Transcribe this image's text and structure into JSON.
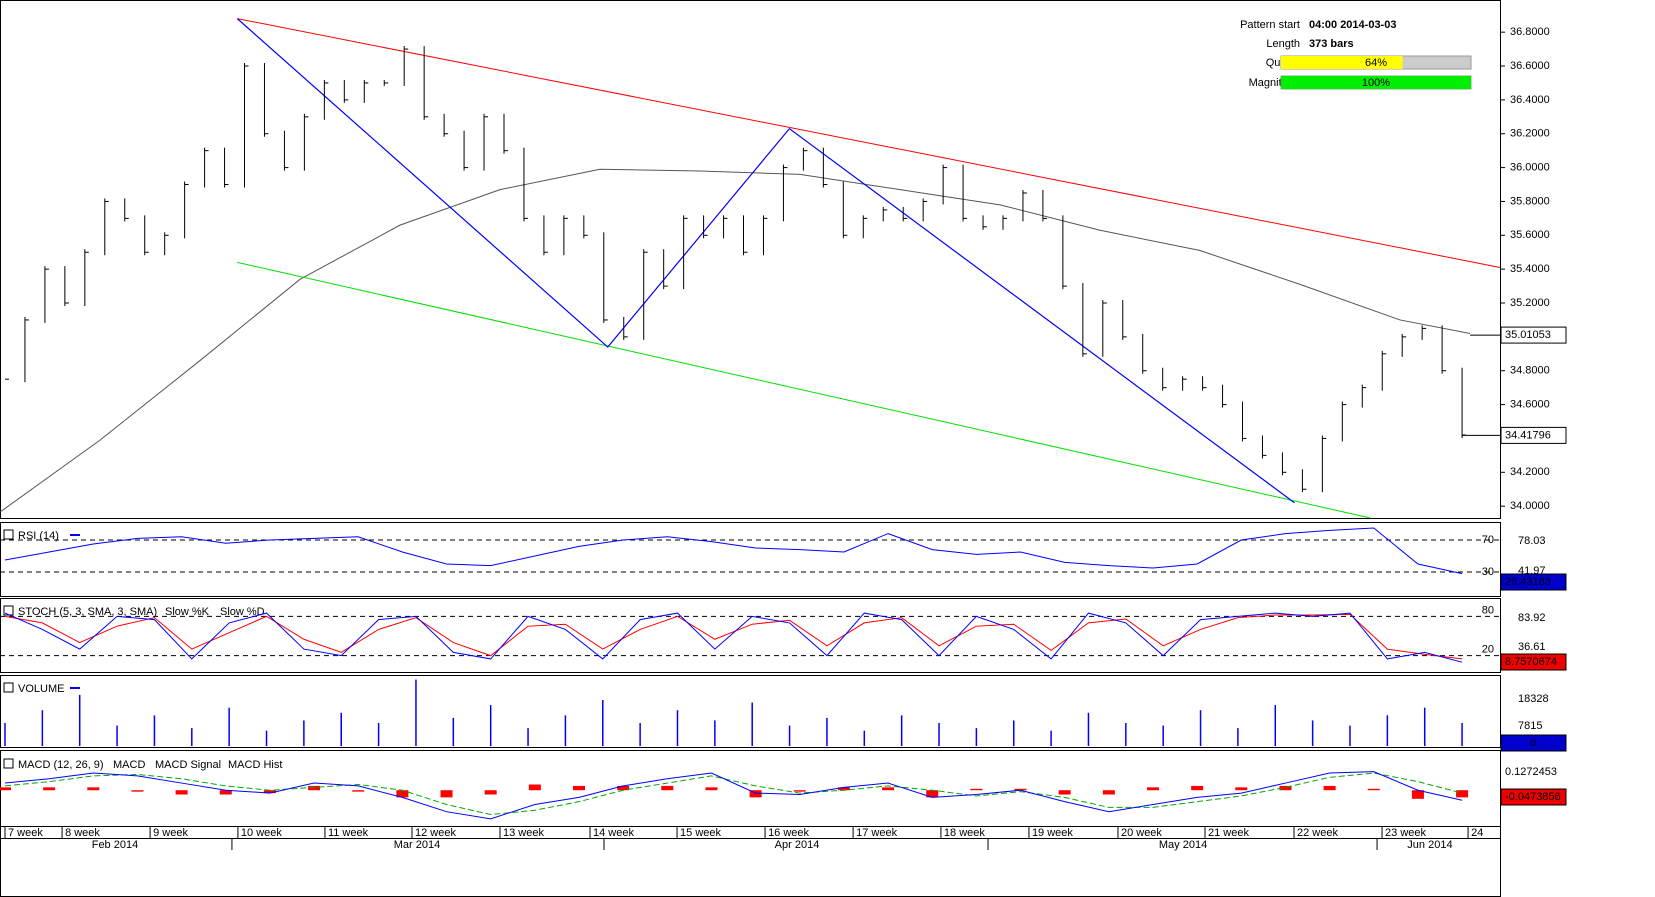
{
  "chart_data": {
    "type": "ohlc",
    "info": {
      "pattern_start_label": "Pattern start",
      "pattern_start": "04:00 2014-03-03",
      "length_label": "Length",
      "length": "373 bars",
      "quality_label": "Quality",
      "quality": {
        "value": 64,
        "label": "64%"
      },
      "magnitude_label": "Magnitude",
      "magnitude": {
        "value": 100,
        "label": "100%"
      }
    },
    "xlim": [
      -0.25,
      74.9
    ],
    "ylim": [
      33.93,
      36.99
    ],
    "yticks": [
      {
        "value": 36.8,
        "label": "36.8000"
      },
      {
        "value": 36.6,
        "label": "36.6000"
      },
      {
        "value": 36.4,
        "label": "36.4000"
      },
      {
        "value": 36.2,
        "label": "36.2000"
      },
      {
        "value": 36.0,
        "label": "36.0000"
      },
      {
        "value": 35.8,
        "label": "35.8000"
      },
      {
        "value": 35.6,
        "label": "35.6000"
      },
      {
        "value": 35.4,
        "label": "35.4000"
      },
      {
        "value": 35.2,
        "label": "35.2000"
      },
      {
        "value": 34.8,
        "label": "34.8000"
      },
      {
        "value": 34.6,
        "label": "34.6000"
      },
      {
        "value": 34.2,
        "label": "34.2000"
      },
      {
        "value": 34.0,
        "label": "34.0000"
      }
    ],
    "values": [
      34.75,
      35.1,
      35.4,
      35.2,
      35.5,
      35.8,
      35.7,
      35.5,
      35.6,
      35.9,
      36.1,
      35.9,
      36.6,
      36.2,
      36.0,
      36.3,
      36.5,
      36.4,
      36.5,
      36.5,
      36.7,
      36.3,
      36.2,
      36.0,
      36.3,
      36.1,
      35.7,
      35.5,
      35.7,
      35.6,
      35.1,
      35.0,
      35.5,
      35.3,
      35.7,
      35.6,
      35.7,
      35.5,
      35.7,
      36.0,
      36.1,
      35.9,
      35.6,
      35.7,
      35.75,
      35.7,
      35.8,
      36.0,
      35.7,
      35.65,
      35.7,
      35.85,
      35.7,
      35.3,
      34.9,
      35.2,
      35.0,
      34.8,
      34.7,
      34.75,
      34.7,
      34.6,
      34.4,
      34.3,
      34.2,
      34.1,
      34.4,
      34.6,
      34.7,
      34.9,
      35.0,
      35.05,
      34.8,
      34.42
    ],
    "last_price": {
      "value": 34.41796,
      "label": "34.41796"
    },
    "ma": {
      "x": [
        -0.25,
        4.76,
        9.77,
        14.78,
        19.79,
        24.8,
        29.81,
        34.82,
        39.83,
        44.84,
        49.85,
        54.86,
        59.87,
        64.88,
        69.89,
        73.4
      ],
      "values": [
        33.965,
        34.39,
        34.86,
        35.34,
        35.66,
        35.87,
        35.99,
        35.98,
        35.96,
        35.87,
        35.78,
        35.63,
        35.51,
        35.31,
        35.1,
        35.02
      ],
      "last": {
        "value": 35.01053,
        "label": "35.01053"
      },
      "color": "#555555"
    },
    "resistance": {
      "x": [
        11.64,
        74.9
      ],
      "values": [
        36.88,
        35.41
      ],
      "color": "#ff0000"
    },
    "support": {
      "x": [
        11.64,
        68.4
      ],
      "values": [
        35.44,
        33.93
      ],
      "color": "#00dd00"
    },
    "zigzag": {
      "x": [
        11.64,
        30.2,
        39.3,
        64.6
      ],
      "values": [
        36.88,
        34.94,
        36.23,
        34.02
      ],
      "color": "#0000ff"
    },
    "xticks": [
      {
        "value": 0.0,
        "label": "7 week"
      },
      {
        "value": 2.86,
        "label": "8 week"
      },
      {
        "value": 7.27,
        "label": "9 week"
      },
      {
        "value": 11.67,
        "label": "10 week"
      },
      {
        "value": 16.03,
        "label": "11 week"
      },
      {
        "value": 20.39,
        "label": "12 week"
      },
      {
        "value": 24.8,
        "label": "13 week"
      },
      {
        "value": 29.31,
        "label": "14 week"
      },
      {
        "value": 33.67,
        "label": "15 week"
      },
      {
        "value": 38.08,
        "label": "16 week"
      },
      {
        "value": 42.49,
        "label": "17 week"
      },
      {
        "value": 46.89,
        "label": "18 week"
      },
      {
        "value": 51.3,
        "label": "19 week"
      },
      {
        "value": 55.76,
        "label": "20 week"
      },
      {
        "value": 60.12,
        "label": "21 week"
      },
      {
        "value": 64.58,
        "label": "22 week"
      },
      {
        "value": 68.99,
        "label": "23 week"
      },
      {
        "value": 73.3,
        "label": "24"
      }
    ],
    "months": [
      {
        "value": 5.51,
        "label": "Feb 2014"
      },
      {
        "value": 20.64,
        "label": "Mar 2014"
      },
      {
        "value": 39.68,
        "label": "Apr 2014"
      },
      {
        "value": 59.02,
        "label": "May 2014"
      },
      {
        "value": 71.39,
        "label": "Jun 2014"
      }
    ],
    "month_breaks": [
      11.37,
      30.01,
      49.25,
      68.74
    ],
    "rsi": {
      "title": "RSI (14)",
      "ylim": [
        0,
        90
      ],
      "levels": [
        70,
        30
      ],
      "scale_labels": [
        "78.03",
        "41.97"
      ],
      "color": "#0000ff",
      "values": [
        45,
        55,
        65,
        72,
        74,
        66,
        70,
        72,
        74,
        55,
        40,
        38,
        50,
        62,
        70,
        74,
        68,
        60,
        58,
        55,
        78,
        58,
        52,
        55,
        42,
        38,
        35,
        40,
        70,
        78,
        82,
        85,
        40,
        28
      ],
      "last": {
        "value": 26.43183,
        "label": "26.43183"
      }
    },
    "stoch": {
      "title": "STOCH (5, 3, SMA, 3, SMA)",
      "k_name": "Slow %K",
      "d_name": "Slow %D",
      "ylim": [
        -5,
        105
      ],
      "levels": [
        80,
        20
      ],
      "scale_labels": [
        "83.92",
        "36.61"
      ],
      "k_color": "#0000ff",
      "d_color": "#ff0000",
      "k": [
        85,
        60,
        30,
        80,
        75,
        15,
        70,
        85,
        30,
        20,
        75,
        80,
        25,
        15,
        80,
        60,
        15,
        75,
        85,
        30,
        80,
        70,
        20,
        85,
        75,
        20,
        80,
        60,
        15,
        85,
        70,
        20,
        75,
        80,
        85,
        80,
        85,
        15,
        25,
        10
      ],
      "d": [
        80,
        70,
        40,
        65,
        78,
        30,
        55,
        80,
        45,
        25,
        60,
        78,
        40,
        20,
        65,
        68,
        30,
        60,
        80,
        45,
        68,
        74,
        35,
        70,
        78,
        35,
        65,
        68,
        28,
        70,
        76,
        35,
        60,
        78,
        82,
        82,
        83,
        30,
        22,
        15
      ],
      "last": {
        "value": 8.7570674,
        "label": "8.7570674"
      }
    },
    "volume": {
      "title": "VOLUME",
      "ylim": [
        0,
        27000
      ],
      "yticks": [
        18328,
        7815
      ],
      "color": "#0000ff",
      "values": [
        9000,
        14000,
        20000,
        8000,
        12000,
        7000,
        15000,
        6000,
        10000,
        13000,
        9000,
        26000,
        11000,
        16000,
        7000,
        12000,
        18000,
        9000,
        14000,
        10000,
        17000,
        8000,
        11000,
        6000,
        12000,
        9000,
        7000,
        10000,
        6000,
        13000,
        9000,
        8000,
        14000,
        7000,
        16000,
        10000,
        8000,
        12000,
        15000,
        9000
      ],
      "last": 0
    },
    "macd": {
      "title": "MACD (12, 26, 9)",
      "macd_name": "MACD",
      "signal_name": "MACD Signal",
      "hist_name": "MACD Hist",
      "ylim": [
        -0.25,
        0.267
      ],
      "scale_label": "0.1272453",
      "macd_color": "#0000ff",
      "signal_color": "#00aa00",
      "hist_color": "#ff0000",
      "macd": [
        0.05,
        0.08,
        0.12,
        0.1,
        0.05,
        0.0,
        -0.02,
        0.05,
        0.03,
        -0.05,
        -0.15,
        -0.2,
        -0.1,
        -0.05,
        0.03,
        0.08,
        0.12,
        -0.02,
        -0.03,
        0.02,
        0.05,
        -0.05,
        -0.03,
        0.0,
        -0.08,
        -0.15,
        -0.1,
        -0.05,
        -0.02,
        0.05,
        0.12,
        0.13,
        0.0,
        -0.07
      ],
      "signal": [
        0.03,
        0.06,
        0.1,
        0.11,
        0.08,
        0.03,
        0.0,
        0.02,
        0.04,
        0.0,
        -0.1,
        -0.17,
        -0.14,
        -0.08,
        0.0,
        0.05,
        0.1,
        0.03,
        -0.02,
        0.0,
        0.03,
        0.0,
        -0.04,
        -0.01,
        -0.05,
        -0.12,
        -0.12,
        -0.08,
        -0.04,
        0.02,
        0.09,
        0.12,
        0.06,
        -0.02
      ],
      "hist": [
        0.02,
        0.02,
        0.02,
        -0.01,
        -0.03,
        -0.03,
        -0.02,
        0.03,
        -0.01,
        -0.05,
        -0.05,
        -0.03,
        0.04,
        0.03,
        0.03,
        0.03,
        0.02,
        -0.05,
        -0.01,
        0.02,
        0.02,
        -0.05,
        0.01,
        0.01,
        -0.03,
        -0.03,
        0.02,
        0.03,
        0.02,
        0.03,
        0.03,
        0.01,
        -0.06,
        -0.05
      ],
      "last": {
        "value": -0.0473856,
        "label": "-0.0473856"
      }
    }
  }
}
